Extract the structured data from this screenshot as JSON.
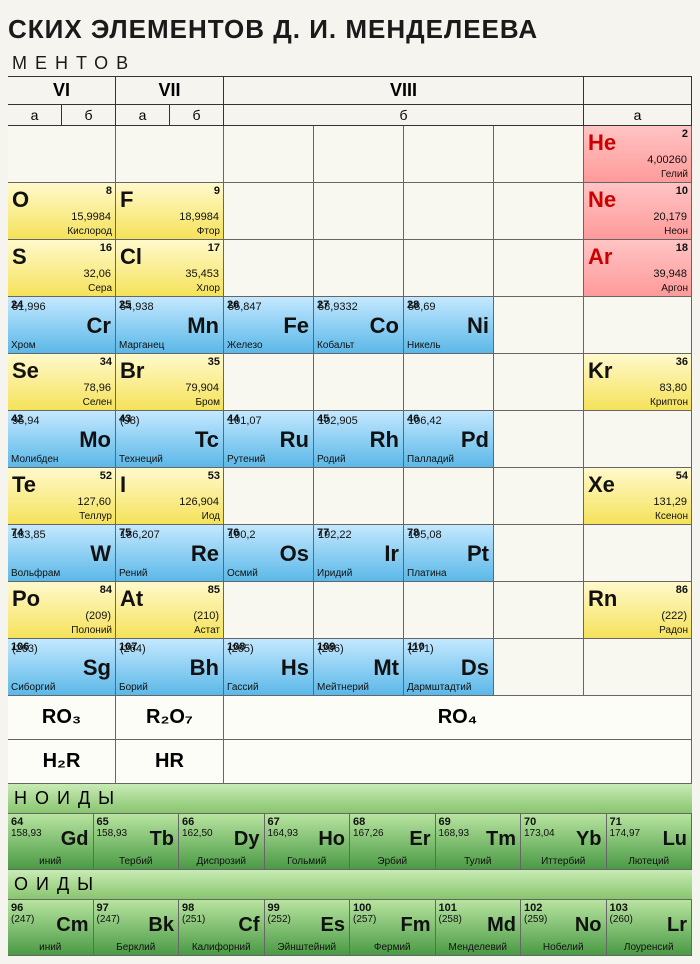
{
  "title": "СКИХ ЭЛЕМЕНТОВ Д. И. МЕНДЕЛЕЕВА",
  "subtitle": "МЕНТОВ",
  "group_headers": [
    "VI",
    "VII",
    "VIII",
    ""
  ],
  "sub_headers": [
    "а",
    "б",
    "а",
    "б",
    "б",
    "а"
  ],
  "colors": {
    "noble": "#ff9a9a",
    "yellow": "#f5e25a",
    "blue": "#5bb8e8",
    "green": "#5aa850",
    "bg": "#f5f4ee"
  },
  "rows": [
    [
      null,
      null,
      null,
      null,
      null,
      null,
      {
        "num": "2",
        "sym": "He",
        "mass": "4,00260",
        "name": "Гелий",
        "cls": "noble"
      }
    ],
    [
      {
        "num": "8",
        "sym": "O",
        "mass": "15,9984",
        "name": "Кислород",
        "cls": "yellow"
      },
      {
        "num": "9",
        "sym": "F",
        "mass": "18,9984",
        "name": "Фтор",
        "cls": "yellow"
      },
      null,
      null,
      null,
      null,
      {
        "num": "10",
        "sym": "Ne",
        "mass": "20,179",
        "name": "Неон",
        "cls": "noble"
      }
    ],
    [
      {
        "num": "16",
        "sym": "S",
        "mass": "32,06",
        "name": "Сера",
        "cls": "yellow"
      },
      {
        "num": "17",
        "sym": "Cl",
        "mass": "35,453",
        "name": "Хлор",
        "cls": "yellow"
      },
      null,
      null,
      null,
      null,
      {
        "num": "18",
        "sym": "Ar",
        "mass": "39,948",
        "name": "Аргон",
        "cls": "noble"
      }
    ],
    [
      {
        "num": "24",
        "sym": "Cr",
        "mass": "51,996",
        "name": "Хром",
        "cls": "blue",
        "right": true
      },
      {
        "num": "25",
        "sym": "Mn",
        "mass": "54,938",
        "name": "Марганец",
        "cls": "blue",
        "right": true
      },
      {
        "num": "26",
        "sym": "Fe",
        "mass": "55,847",
        "name": "Железо",
        "cls": "blue",
        "right": true
      },
      {
        "num": "27",
        "sym": "Co",
        "mass": "58,9332",
        "name": "Кобальт",
        "cls": "blue",
        "right": true
      },
      {
        "num": "28",
        "sym": "Ni",
        "mass": "58,69",
        "name": "Никель",
        "cls": "blue",
        "right": true
      },
      null,
      null
    ],
    [
      {
        "num": "34",
        "sym": "Se",
        "mass": "78,96",
        "name": "Селен",
        "cls": "yellow"
      },
      {
        "num": "35",
        "sym": "Br",
        "mass": "79,904",
        "name": "Бром",
        "cls": "yellow"
      },
      null,
      null,
      null,
      null,
      {
        "num": "36",
        "sym": "Kr",
        "mass": "83,80",
        "name": "Криптон",
        "cls": "yellow"
      }
    ],
    [
      {
        "num": "42",
        "sym": "Mo",
        "mass": "95,94",
        "name": "Молибден",
        "cls": "blue",
        "right": true
      },
      {
        "num": "43",
        "sym": "Tc",
        "mass": "(98)",
        "name": "Технеций",
        "cls": "blue",
        "right": true
      },
      {
        "num": "44",
        "sym": "Ru",
        "mass": "101,07",
        "name": "Рутений",
        "cls": "blue",
        "right": true
      },
      {
        "num": "45",
        "sym": "Rh",
        "mass": "102,905",
        "name": "Родий",
        "cls": "blue",
        "right": true
      },
      {
        "num": "46",
        "sym": "Pd",
        "mass": "106,42",
        "name": "Палладий",
        "cls": "blue",
        "right": true
      },
      null,
      null
    ],
    [
      {
        "num": "52",
        "sym": "Te",
        "mass": "127,60",
        "name": "Теллур",
        "cls": "yellow"
      },
      {
        "num": "53",
        "sym": "I",
        "mass": "126,904",
        "name": "Иод",
        "cls": "yellow"
      },
      null,
      null,
      null,
      null,
      {
        "num": "54",
        "sym": "Xe",
        "mass": "131,29",
        "name": "Ксенон",
        "cls": "yellow"
      }
    ],
    [
      {
        "num": "74",
        "sym": "W",
        "mass": "183,85",
        "name": "Вольфрам",
        "cls": "blue",
        "right": true
      },
      {
        "num": "75",
        "sym": "Re",
        "mass": "186,207",
        "name": "Рений",
        "cls": "blue",
        "right": true
      },
      {
        "num": "76",
        "sym": "Os",
        "mass": "190,2",
        "name": "Осмий",
        "cls": "blue",
        "right": true
      },
      {
        "num": "77",
        "sym": "Ir",
        "mass": "192,22",
        "name": "Иридий",
        "cls": "blue",
        "right": true
      },
      {
        "num": "78",
        "sym": "Pt",
        "mass": "195,08",
        "name": "Платина",
        "cls": "blue",
        "right": true
      },
      null,
      null
    ],
    [
      {
        "num": "84",
        "sym": "Po",
        "mass": "(209)",
        "name": "Полоний",
        "cls": "yellow"
      },
      {
        "num": "85",
        "sym": "At",
        "mass": "(210)",
        "name": "Астат",
        "cls": "yellow"
      },
      null,
      null,
      null,
      null,
      {
        "num": "86",
        "sym": "Rn",
        "mass": "(222)",
        "name": "Радон",
        "cls": "yellow"
      }
    ],
    [
      {
        "num": "106",
        "sym": "Sg",
        "mass": "(263)",
        "name": "Сиборгий",
        "cls": "blue",
        "right": true
      },
      {
        "num": "107",
        "sym": "Bh",
        "mass": "(264)",
        "name": "Борий",
        "cls": "blue",
        "right": true
      },
      {
        "num": "108",
        "sym": "Hs",
        "mass": "(265)",
        "name": "Гассий",
        "cls": "blue",
        "right": true
      },
      {
        "num": "109",
        "sym": "Mt",
        "mass": "(266)",
        "name": "Мейтнерий",
        "cls": "blue",
        "right": true
      },
      {
        "num": "110",
        "sym": "Ds",
        "mass": "(271)",
        "name": "Дармштадтий",
        "cls": "blue",
        "right": true
      },
      null,
      null
    ]
  ],
  "oxide_row": [
    "RO₃",
    "R₂O₇",
    "RO₄"
  ],
  "hydride_row": [
    "H₂R",
    "HR",
    ""
  ],
  "lanth_header": "НОИДЫ",
  "lanthanides": [
    {
      "num": "64",
      "sym": "Gd",
      "mass": "158,93",
      "name": "иний"
    },
    {
      "num": "65",
      "sym": "Tb",
      "mass": "158,93",
      "name": "Тербий"
    },
    {
      "num": "66",
      "sym": "Dy",
      "mass": "162,50",
      "name": "Диспрозий"
    },
    {
      "num": "67",
      "sym": "Ho",
      "mass": "164,93",
      "name": "Гольмий"
    },
    {
      "num": "68",
      "sym": "Er",
      "mass": "167,26",
      "name": "Эрбий"
    },
    {
      "num": "69",
      "sym": "Tm",
      "mass": "168,93",
      "name": "Тулий"
    },
    {
      "num": "70",
      "sym": "Yb",
      "mass": "173,04",
      "name": "Иттербий"
    },
    {
      "num": "71",
      "sym": "Lu",
      "mass": "174,97",
      "name": "Лютеций"
    }
  ],
  "act_header": "ОИДЫ",
  "actinides": [
    {
      "num": "96",
      "sym": "Cm",
      "mass": "(247)",
      "name": "иний"
    },
    {
      "num": "97",
      "sym": "Bk",
      "mass": "(247)",
      "name": "Берклий"
    },
    {
      "num": "98",
      "sym": "Cf",
      "mass": "(251)",
      "name": "Калифорний"
    },
    {
      "num": "99",
      "sym": "Es",
      "mass": "(252)",
      "name": "Эйнштейний"
    },
    {
      "num": "100",
      "sym": "Fm",
      "mass": "(257)",
      "name": "Фермий"
    },
    {
      "num": "101",
      "sym": "Md",
      "mass": "(258)",
      "name": "Менделевий"
    },
    {
      "num": "102",
      "sym": "No",
      "mass": "(259)",
      "name": "Нобелий"
    },
    {
      "num": "103",
      "sym": "Lr",
      "mass": "(260)",
      "name": "Лоуренсий"
    }
  ]
}
